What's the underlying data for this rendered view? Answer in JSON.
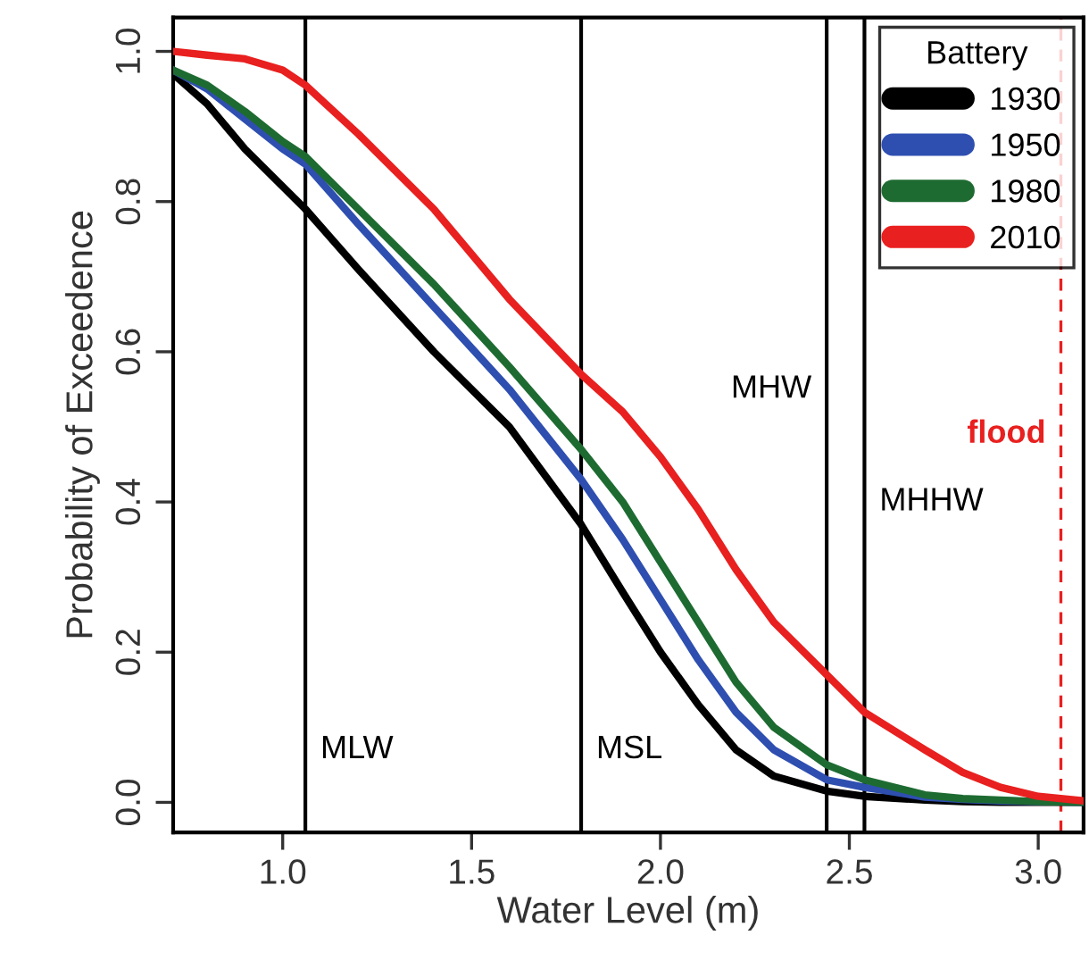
{
  "chart_data": {
    "type": "line",
    "xlabel": "Water Level (m)",
    "ylabel": "Probability of Exceedence",
    "legend_title": "Battery",
    "legend": "top right",
    "xlim": [
      0.71,
      3.12
    ],
    "xticks": [
      {
        "value": 1.0,
        "label": "1.0"
      },
      {
        "value": 1.5,
        "label": "1.5"
      },
      {
        "value": 2.0,
        "label": "2.0"
      },
      {
        "value": 2.5,
        "label": "2.5"
      },
      {
        "value": 3.0,
        "label": "3.0"
      }
    ],
    "ylim": [
      -0.04,
      1.045
    ],
    "yticks": [
      {
        "value": 0.0,
        "label": "0.0"
      },
      {
        "value": 0.2,
        "label": "0.2"
      },
      {
        "value": 0.4,
        "label": "0.4"
      },
      {
        "value": 0.6,
        "label": "0.6"
      },
      {
        "value": 0.8,
        "label": "0.8"
      },
      {
        "value": 1.0,
        "label": "1.0"
      }
    ],
    "grid": false,
    "marker": "none",
    "line_style": "solid",
    "x": [
      0.71,
      0.8,
      0.9,
      1.0,
      1.06,
      1.2,
      1.4,
      1.6,
      1.79,
      1.9,
      2.0,
      2.1,
      2.2,
      2.3,
      2.44,
      2.54,
      2.7,
      2.8,
      2.9,
      3.0,
      3.12
    ],
    "series": [
      {
        "name": "1930",
        "color": "#000000",
        "values": [
          0.97,
          0.93,
          0.87,
          0.82,
          0.79,
          0.71,
          0.6,
          0.5,
          0.37,
          0.28,
          0.2,
          0.13,
          0.07,
          0.035,
          0.015,
          0.008,
          0.003,
          0.001,
          0.0,
          0.0,
          0.0
        ]
      },
      {
        "name": "1950",
        "color": "#2e4fb0",
        "values": [
          0.975,
          0.95,
          0.91,
          0.87,
          0.85,
          0.77,
          0.66,
          0.55,
          0.43,
          0.35,
          0.27,
          0.19,
          0.12,
          0.07,
          0.03,
          0.02,
          0.007,
          0.004,
          0.002,
          0.001,
          0.0
        ]
      },
      {
        "name": "1980",
        "color": "#1e6b32",
        "values": [
          0.975,
          0.955,
          0.92,
          0.88,
          0.86,
          0.79,
          0.69,
          0.58,
          0.47,
          0.4,
          0.32,
          0.24,
          0.16,
          0.1,
          0.05,
          0.03,
          0.01,
          0.005,
          0.003,
          0.001,
          0.0
        ]
      },
      {
        "name": "2010",
        "color": "#e8201f",
        "values": [
          1.0,
          0.995,
          0.99,
          0.975,
          0.955,
          0.89,
          0.79,
          0.67,
          0.57,
          0.52,
          0.46,
          0.39,
          0.31,
          0.24,
          0.17,
          0.12,
          0.07,
          0.04,
          0.02,
          0.008,
          0.002
        ]
      }
    ],
    "ref_lines": [
      {
        "axis": "x",
        "value": 1.06,
        "label": "MLW",
        "color": "#000000",
        "line_style": "solid"
      },
      {
        "axis": "x",
        "value": 1.79,
        "label": "MSL",
        "color": "#000000",
        "line_style": "solid"
      },
      {
        "axis": "x",
        "value": 2.44,
        "label": "MHW",
        "color": "#000000",
        "line_style": "solid"
      },
      {
        "axis": "x",
        "value": 2.54,
        "label": "MHHW",
        "color": "#000000",
        "line_style": "solid"
      },
      {
        "axis": "x",
        "value": 3.06,
        "label": "flood",
        "color": "#e8201f",
        "line_style": "dashed"
      }
    ]
  }
}
